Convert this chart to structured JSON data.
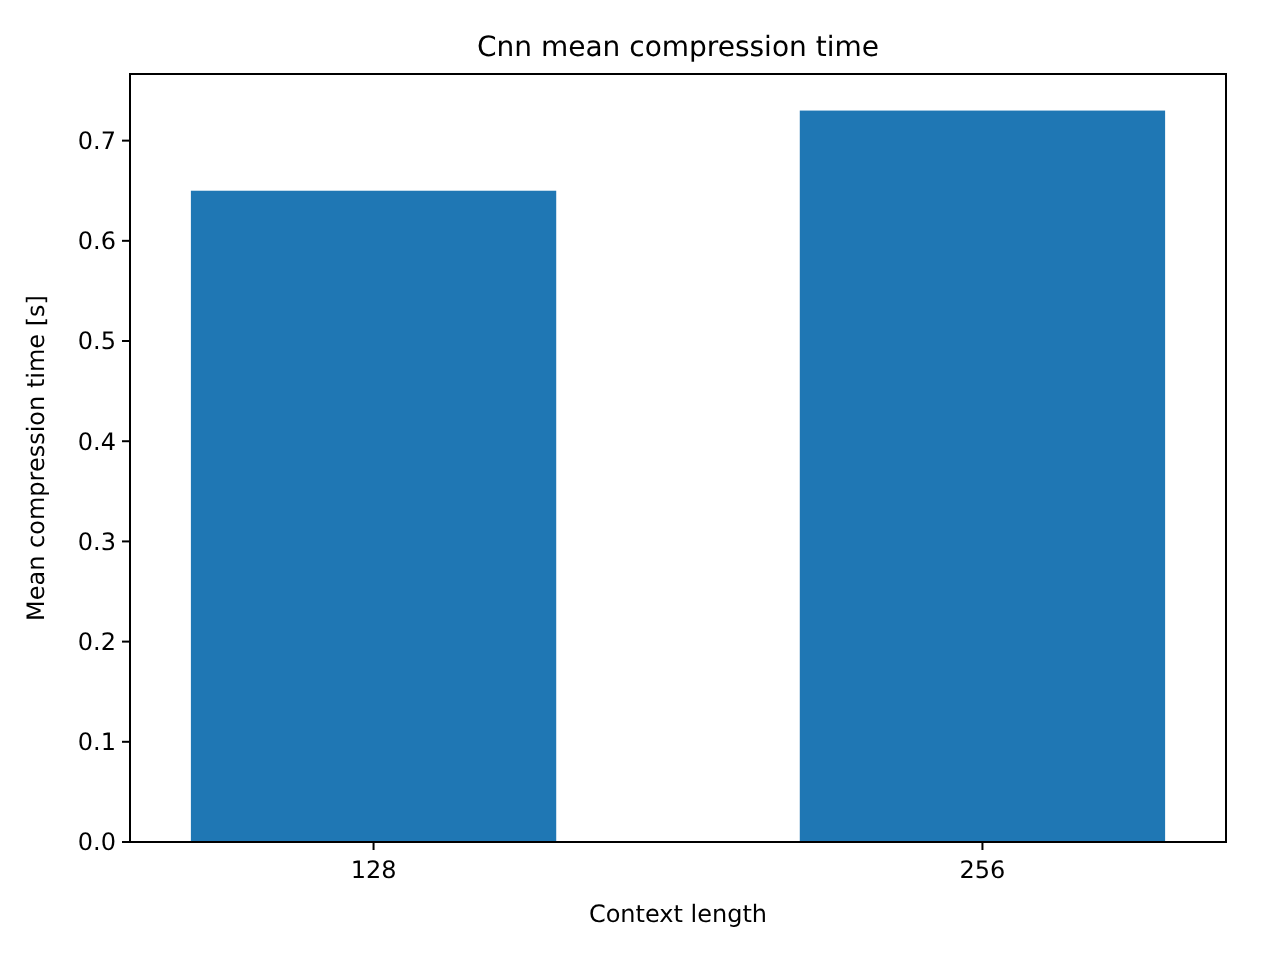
{
  "chart_data": {
    "type": "bar",
    "title": "Cnn mean compression time",
    "xlabel": "Context length",
    "ylabel": "Mean compression time [s]",
    "categories": [
      "128",
      "256"
    ],
    "values": [
      0.65,
      0.73
    ],
    "color": "#1f77b4",
    "ylim": [
      0,
      0.7665
    ],
    "yticks": [
      {
        "value": 0,
        "label": "0.0"
      },
      0.1,
      0.2,
      0.3,
      0.4,
      0.5,
      0.6,
      0.7
    ],
    "grid": false
  }
}
